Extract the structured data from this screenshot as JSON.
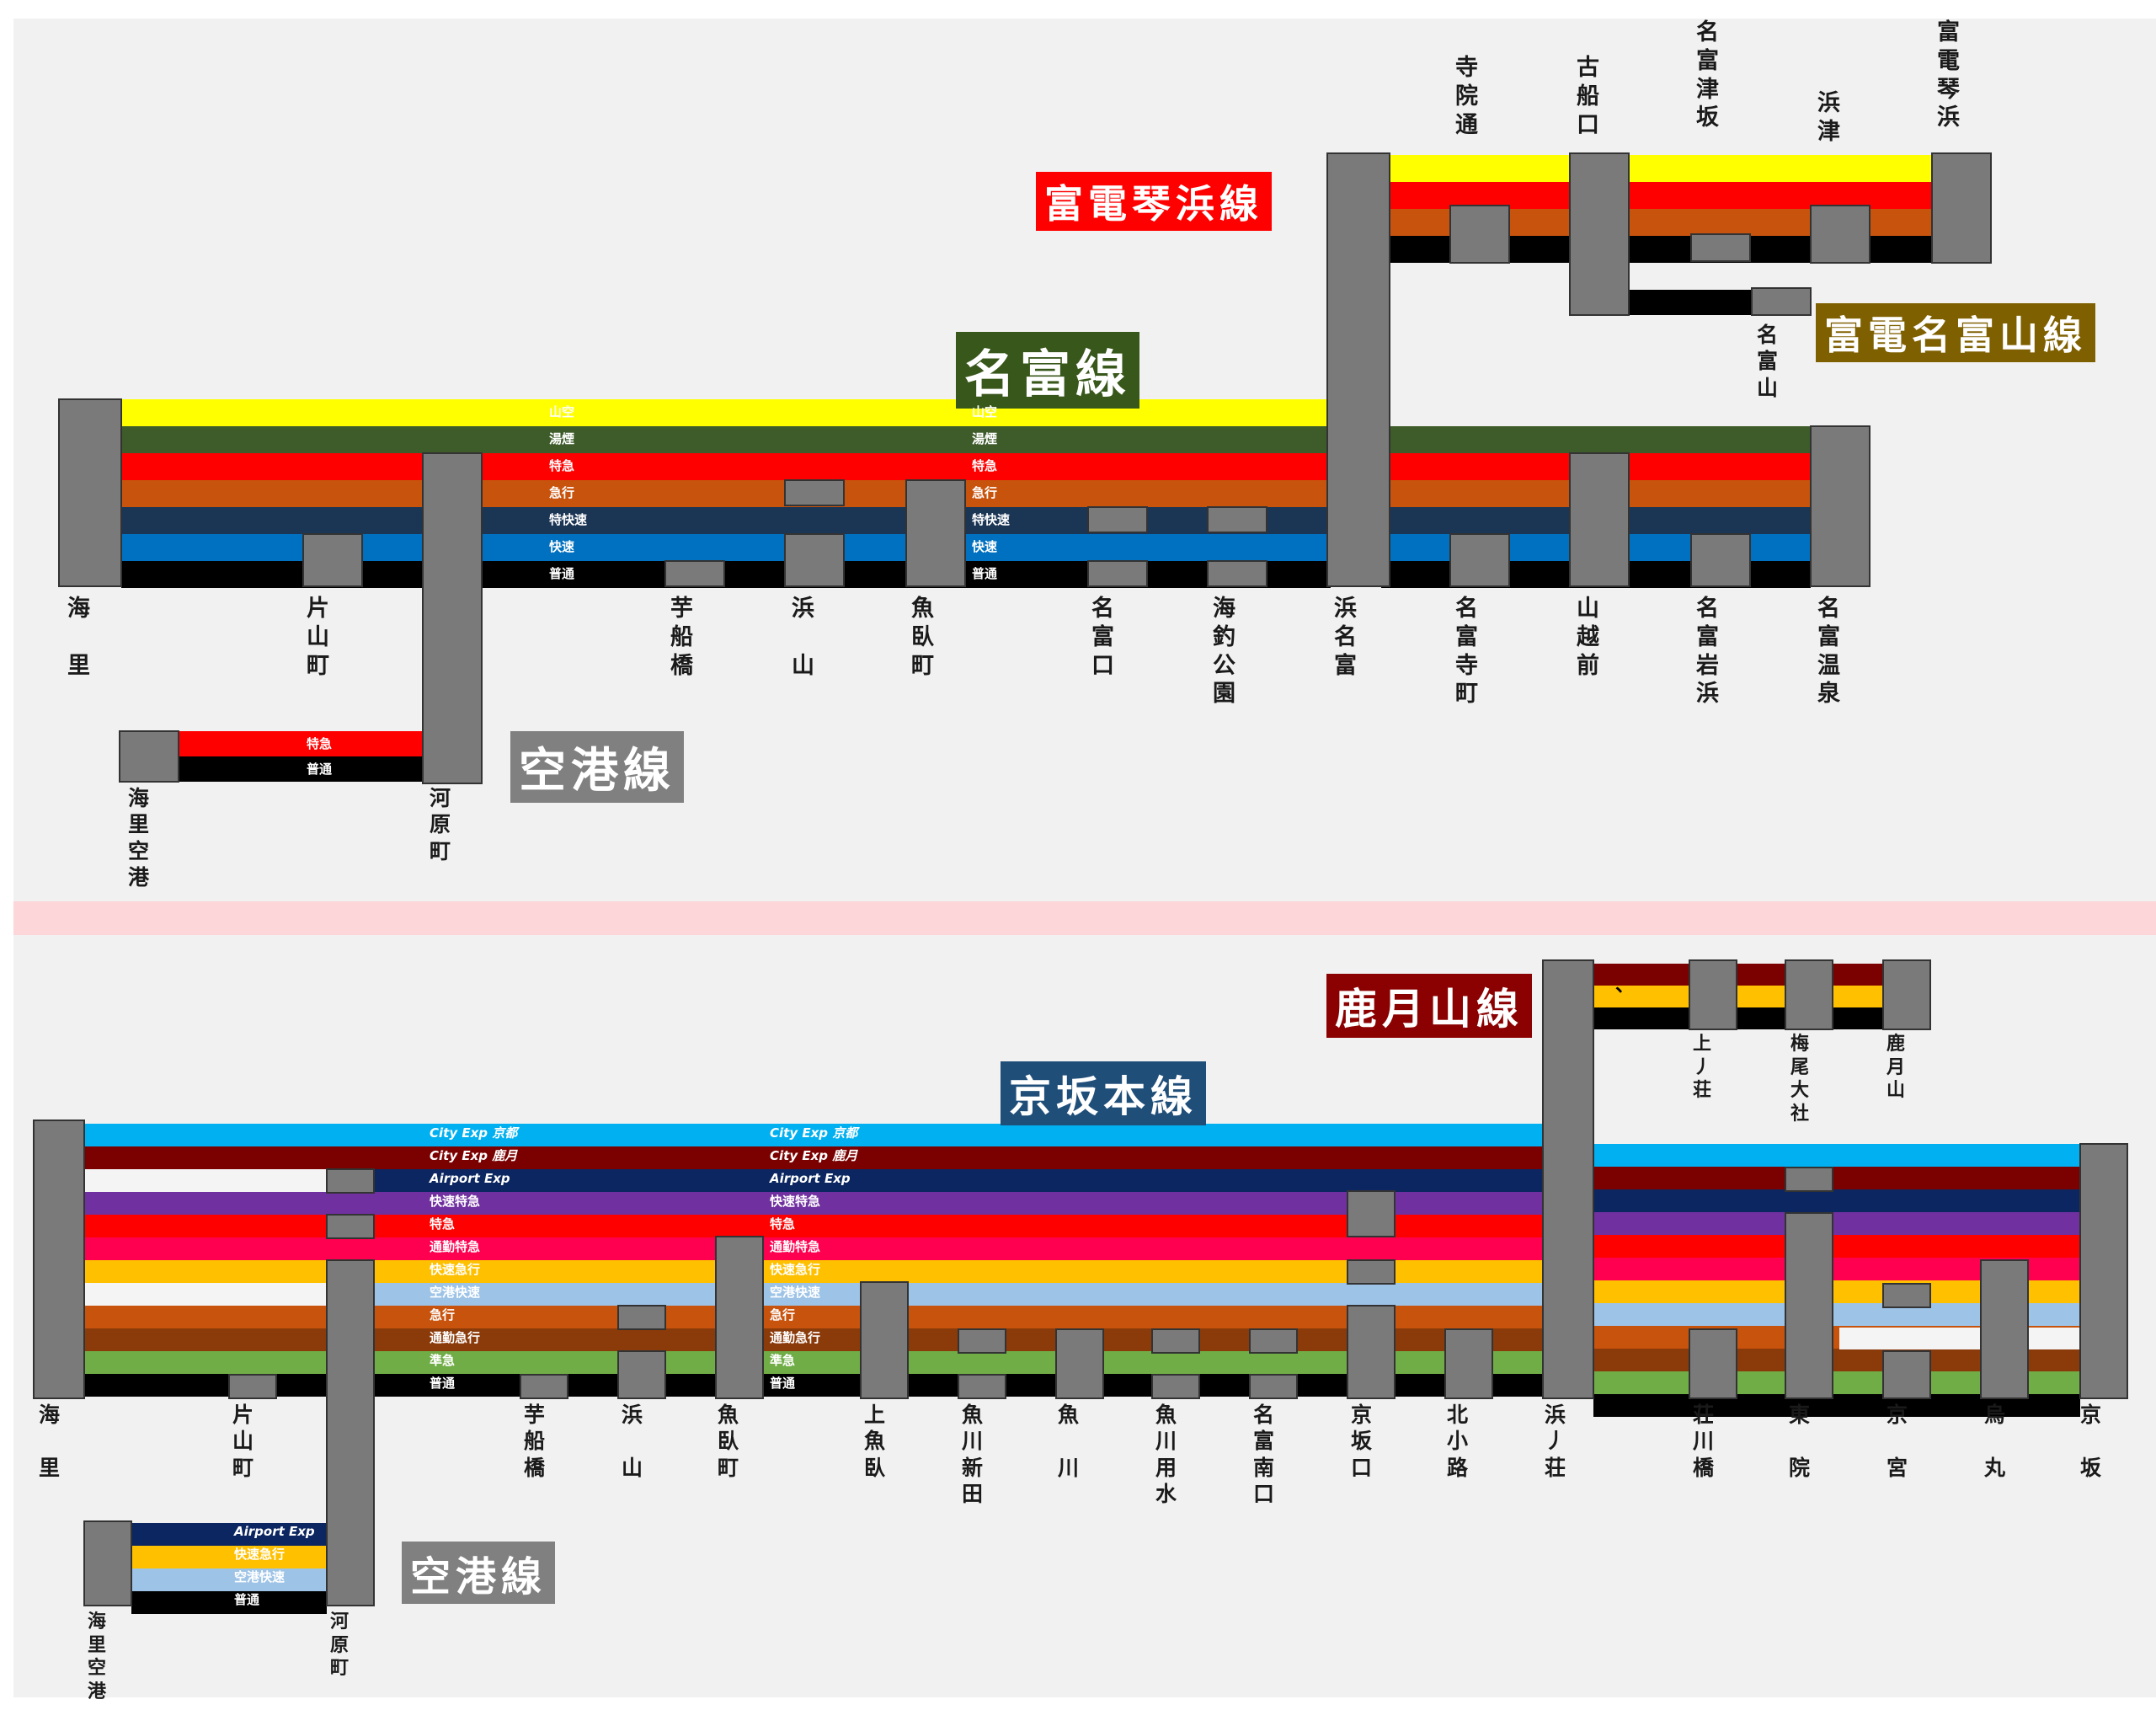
{
  "colors": {
    "background": "#f1f1f1",
    "divider": "#fcd6d8",
    "station": "#7a7a7a",
    "station_border": "#333333",
    "yellow": "#ffff00",
    "darkgreen": "#3e5b2a",
    "red": "#ff0000",
    "orange": "#c8530d",
    "navy": "#1b3555",
    "blue": "#0070c0",
    "black": "#000000",
    "sky": "#00b0f0",
    "maroon": "#7b0000",
    "deepnavy": "#0b2660",
    "purple": "#7030a0",
    "crimson": "#ff0050",
    "amber": "#ffc000",
    "white": "#f4f4f4",
    "lightblue": "#9dc3e6",
    "brown": "#8b3a0a",
    "lightgreen": "#70ad47",
    "title_red": "#ff0000",
    "title_green": "#38571a",
    "title_olive": "#7f6000",
    "title_grey": "#808080",
    "title_blue": "#1f4e79",
    "title_maroon": "#8b0000"
  },
  "top": {
    "titles": {
      "meitomi": "名富線",
      "kotohama": "富電琴浜線",
      "nayama": "富電名富山線",
      "kuko": "空港線"
    },
    "services": {
      "sanku": "山空",
      "yukemuri": "湯煙",
      "tokkyu": "特急",
      "kyuko": "急行",
      "tokkaisoku": "特快速",
      "kaisoku": "快速",
      "futsu": "普通"
    },
    "stations": {
      "kaisato": "海\n\n里",
      "katayama": "片\n山\n町",
      "kawara": "河\n原\n町",
      "imofune": "芋\n船\n橋",
      "hamayama": "浜\n\n山",
      "uokubo": "魚\n臥\n町",
      "meitomiguchi": "名\n富\n口",
      "kaichou": "海\n釣\n公\n園",
      "hamameitomi": "浜\n名\n富",
      "meitomidera": "名\n富\n寺\n町",
      "yamakoshi": "山\n越\n前",
      "iwahama": "名\n富\n岩\n浜",
      "onsen": "名\n富\n温\n泉",
      "jiin": "寺\n院\n通",
      "kofune": "古\n船\n口",
      "tsuzaka": "名\n富\n津\n坂",
      "hamatsu": "浜\n津",
      "kotohama_st": "富\n電\n琴\n浜",
      "meitomiyama": "名\n富\n山",
      "airport": "海\n里\n空\n港"
    }
  },
  "bottom": {
    "titles": {
      "keihan": "京坂本線",
      "shikatsuki": "鹿月山線",
      "kuko": "空港線"
    },
    "mark": "、",
    "services": {
      "cityexp_kyo": "City Exp 京都",
      "cityexp_shika": "City Exp 鹿月",
      "airport_exp": "Airport Exp",
      "kaisoku_tokkyu": "快速特急",
      "tokkyu": "特急",
      "tsukin_tokkyu": "通勤特急",
      "kaisoku_kyuko": "快速急行",
      "kuko_kaisoku": "空港快速",
      "kyuko": "急行",
      "tsukin_kyuko": "通勤急行",
      "junkyu": "準急",
      "futsu": "普通"
    },
    "airport_services": {
      "airport_exp": "Airport Exp",
      "kaisoku_kyuko": "快速急行",
      "kuko_kaisoku": "空港快速",
      "futsu": "普通"
    },
    "stations": {
      "kaisato": "海\n\n里",
      "katayama": "片\n山\n町",
      "kawara": "河\n原\n町",
      "imofune": "芋\n船\n橋",
      "hamayama": "浜\n\n山",
      "uokubo": "魚\n臥\n町",
      "kamiuo": "上\n魚\n臥",
      "uokawashinden": "魚\n川\n新\n田",
      "uokawa": "魚\n\n川",
      "yosui": "魚\n川\n用\n水",
      "nantomiguchi": "名\n富\n南\n口",
      "keihanguchi": "京\n坂\n口",
      "kitakoji": "北\n小\n路",
      "hamanosho": "浜\n丿\n荘",
      "shogawa": "荘\n川\n橋",
      "toin": "東\n\n院",
      "kyomiya": "京\n\n宮",
      "karasuma": "烏\n\n丸",
      "keihan_st": "京\n\n坂",
      "uenosho": "上\n丿\n荘",
      "umeo": "梅\n尾\n大\n社",
      "shikatsuki_st": "鹿\n月\n山",
      "airport": "海\n里\n空\n港"
    }
  }
}
